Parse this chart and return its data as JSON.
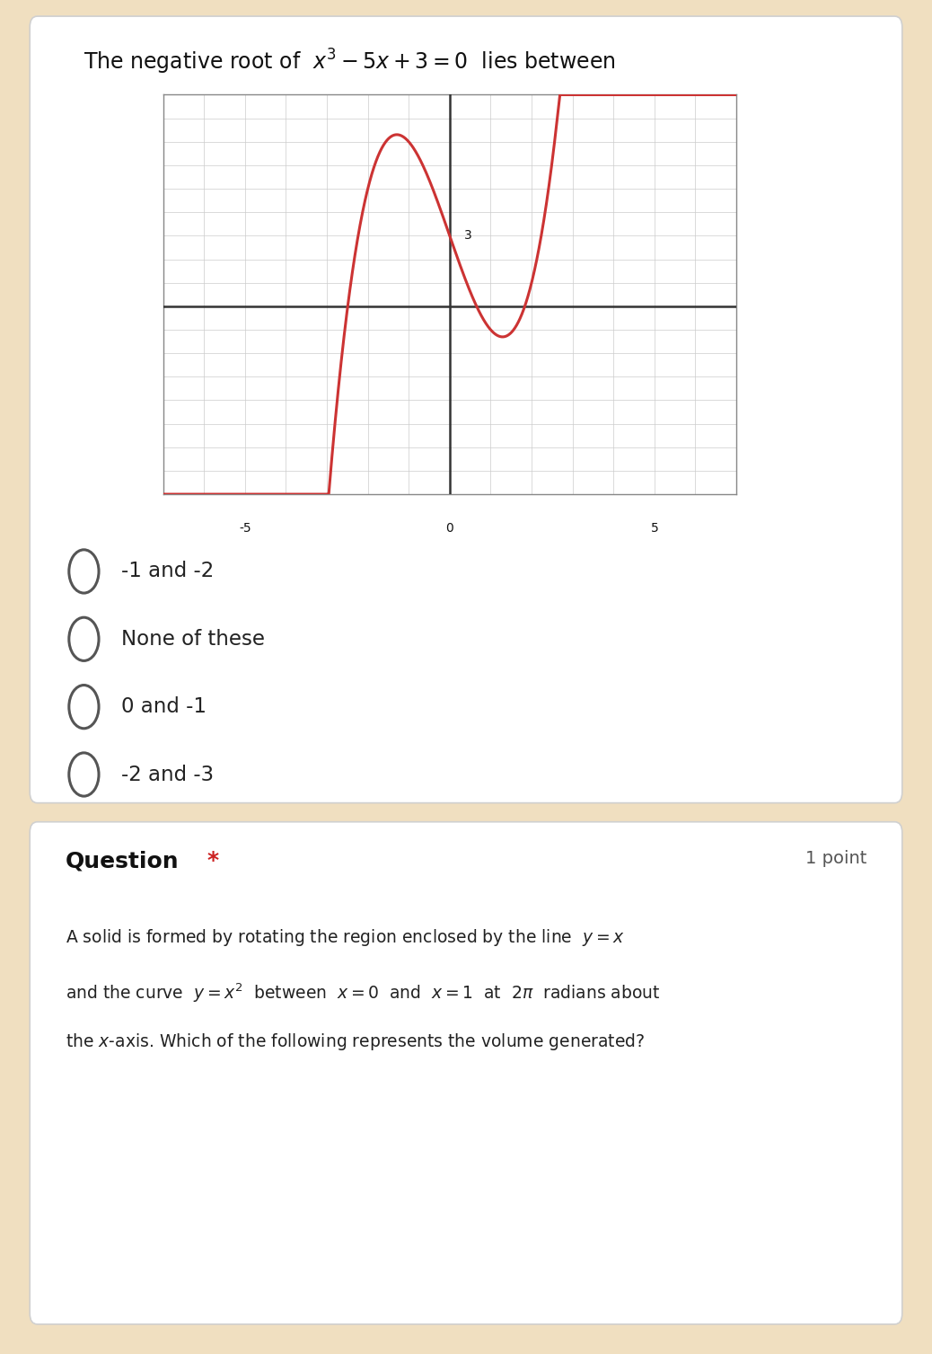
{
  "page_bg": "#f0dfc0",
  "card1_bg": "#ffffff",
  "card2_bg": "#ffffff",
  "title_text": "The negative root of  $x^3-5x+3=0$  lies between",
  "graph_xlim": [
    -7,
    7
  ],
  "graph_ylim": [
    -8,
    9
  ],
  "graph_xticks": [
    -5,
    0,
    5
  ],
  "graph_ytick_val": 3,
  "curve_color": "#cc3333",
  "axis_color": "#333333",
  "grid_color": "#cccccc",
  "options_q1": [
    "-1 and -2",
    "None of these",
    "0 and -1",
    "-2 and -3"
  ],
  "q2_label": "Question",
  "q2_star": "*",
  "q2_points": "1 point",
  "q2_text_line1": "A solid is formed by rotating the region enclosed by the line  $y=x$",
  "q2_text_line2": "and the curve  $y=x^2$  between  $x=0$  and  $x=1$  at  $2\\pi$  radians about",
  "q2_text_line3": "the $x$-axis. Which of the following represents the volume generated?"
}
